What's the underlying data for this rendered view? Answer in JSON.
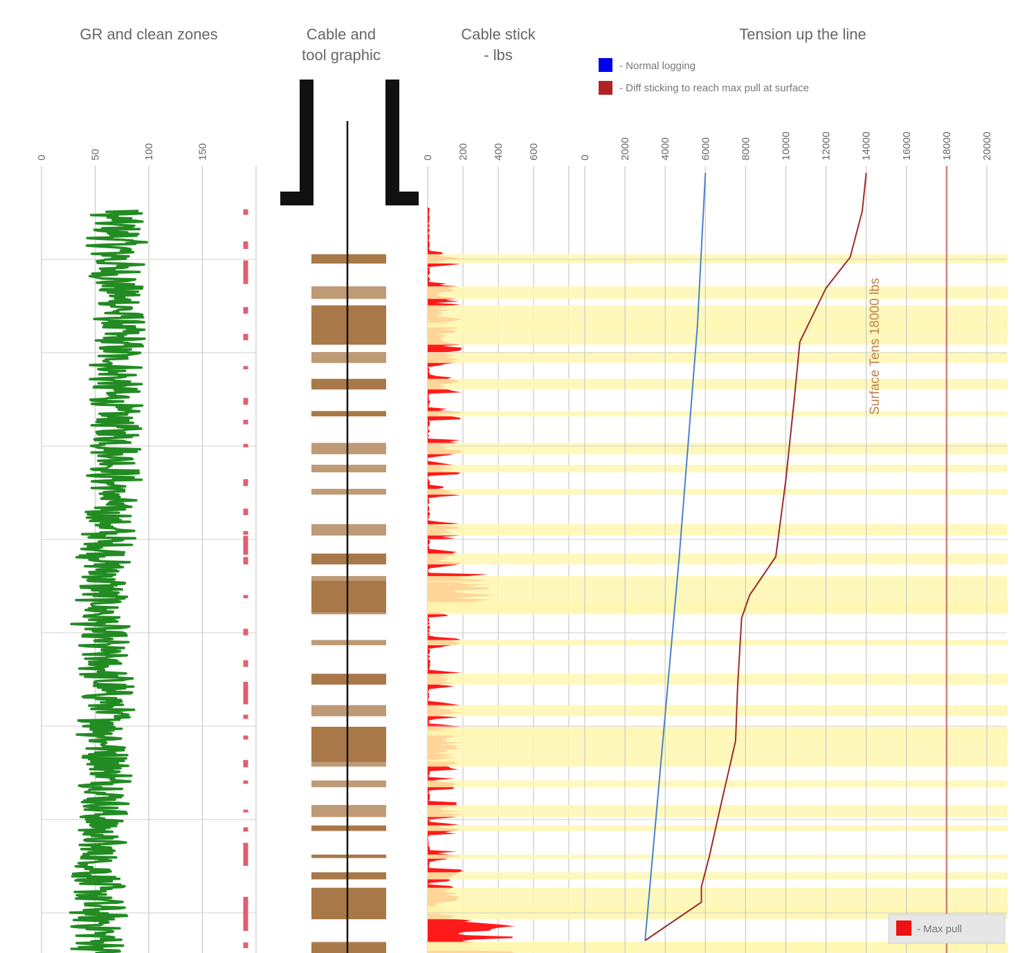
{
  "chart_data": [
    {
      "type": "line",
      "panel": "gr",
      "title": "GR and clean zones",
      "x_ticks": [
        "0",
        "50",
        "100",
        "150"
      ],
      "xlim": [
        0,
        200
      ],
      "series": [
        {
          "key": "gr",
          "color": "#228b22",
          "baseline": [
            70,
            70,
            68,
            74,
            72,
            70,
            66,
            68,
            72,
            65,
            62,
            60,
            58,
            56,
            54,
            60,
            62,
            60,
            64,
            60,
            54,
            52,
            50,
            54,
            56
          ],
          "amplitude": 28
        },
        {
          "key": "clean_zones",
          "color": "#e06070",
          "x": 190
        }
      ]
    },
    {
      "type": "diagram",
      "panel": "cable",
      "title": "Cable and tool graphic",
      "band_color": "#a87848",
      "cable_color": "#111111"
    },
    {
      "type": "area",
      "panel": "stick",
      "title": "Cable stick - lbs",
      "x_ticks": [
        "0",
        "200",
        "400",
        "600"
      ],
      "xlim": [
        0,
        800
      ],
      "fill_color": "#ff1a1a"
    },
    {
      "type": "line",
      "panel": "tension",
      "title": "Tension up the line",
      "x_ticks": [
        "0",
        "2000",
        "4000",
        "6000",
        "8000",
        "10000",
        "12000",
        "14000",
        "16000",
        "18000",
        "20000"
      ],
      "xlim": [
        0,
        21000
      ],
      "legend": [
        {
          "label": "- Normal logging",
          "color": "#0000ee"
        },
        {
          "label": "- Diff sticking to reach max pull at surface",
          "color": "#b22222"
        }
      ],
      "annotation": "Surface Tens 18000 lbs",
      "limit_value": 18000,
      "limit_color": "#d08080",
      "series": [
        {
          "key": "normal",
          "color": "#4a80c8",
          "points": [
            [
              6000,
              0
            ],
            [
              5600,
              0.2
            ],
            [
              4700,
              0.5
            ],
            [
              3000,
              1.0
            ]
          ]
        },
        {
          "key": "diff",
          "color": "#9a2a2a",
          "points": [
            [
              14000,
              0
            ],
            [
              13800,
              0.05
            ],
            [
              13200,
              0.11
            ],
            [
              12000,
              0.15
            ],
            [
              10700,
              0.22
            ],
            [
              10400,
              0.3
            ],
            [
              10000,
              0.4
            ],
            [
              9500,
              0.5
            ],
            [
              8200,
              0.55
            ],
            [
              7800,
              0.58
            ],
            [
              7600,
              0.67
            ],
            [
              7500,
              0.74
            ],
            [
              6800,
              0.82
            ],
            [
              6200,
              0.89
            ],
            [
              5800,
              0.93
            ],
            [
              5800,
              0.95
            ],
            [
              3000,
              1.0
            ]
          ]
        }
      ],
      "max_pull_label": "- Max pull",
      "max_pull_color": "#ee1111"
    }
  ]
}
